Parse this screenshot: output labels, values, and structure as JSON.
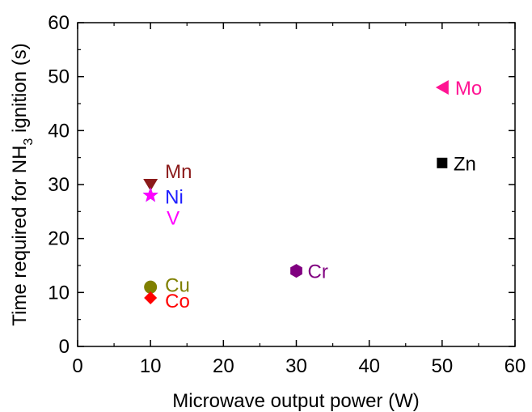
{
  "chart_data": {
    "type": "scatter",
    "xlabel": "Microwave output power (W)",
    "ylabel_parts": {
      "before": "Time required for NH",
      "sub": "3",
      "after": " ignition (s)"
    },
    "xlim": [
      0,
      60
    ],
    "ylim": [
      0,
      60
    ],
    "xticks": [
      "0",
      "10",
      "20",
      "30",
      "40",
      "50",
      "60"
    ],
    "yticks": [
      "0",
      "10",
      "20",
      "30",
      "40",
      "50",
      "60"
    ],
    "grid": false,
    "points": [
      {
        "label": "Mn",
        "x": 10,
        "y": 30,
        "marker": "triangle-down",
        "color": "#8b1a1a"
      },
      {
        "label": "Ni",
        "x": 10,
        "y": 28,
        "marker": "star",
        "color": "#1f1fff"
      },
      {
        "label": "V",
        "x": 10,
        "y": 28,
        "marker": "star",
        "color": "#ff00ff"
      },
      {
        "label": "Cu",
        "x": 10,
        "y": 11,
        "marker": "circle",
        "color": "#808000"
      },
      {
        "label": "Co",
        "x": 10,
        "y": 9,
        "marker": "diamond",
        "color": "#ff0000"
      },
      {
        "label": "Cr",
        "x": 30,
        "y": 14,
        "marker": "hexagon",
        "color": "#800080"
      },
      {
        "label": "Zn",
        "x": 50,
        "y": 34,
        "marker": "square",
        "color": "#000000"
      },
      {
        "label": "Mo",
        "x": 50,
        "y": 48,
        "marker": "triangle-left",
        "color": "#ff1493"
      }
    ]
  }
}
